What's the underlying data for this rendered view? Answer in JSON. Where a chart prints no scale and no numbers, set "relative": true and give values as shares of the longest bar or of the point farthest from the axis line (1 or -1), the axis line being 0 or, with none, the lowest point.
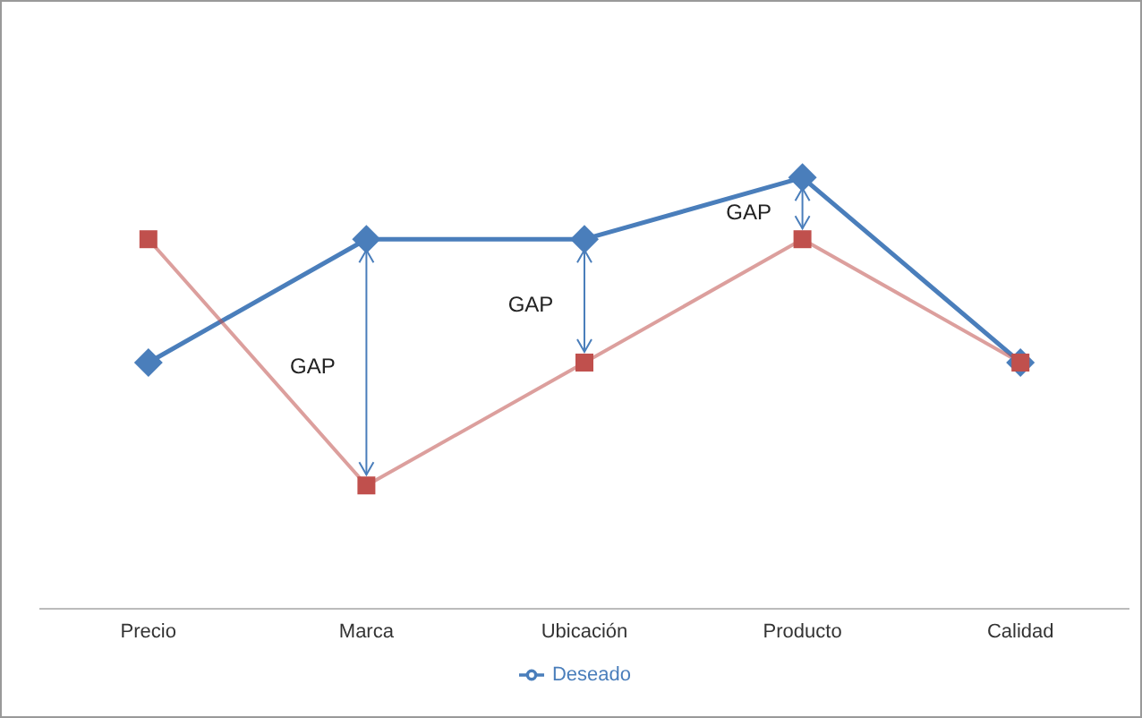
{
  "chart_data": {
    "type": "line",
    "relative": true,
    "categories": [
      "Precio",
      "Marca",
      "Ubicación",
      "Producto",
      "Calidad"
    ],
    "series": [
      {
        "name": "Deseado",
        "color": "#4a7ebb",
        "marker": "diamond",
        "values": [
          0.571,
          0.857,
          0.857,
          1,
          0.571
        ]
      },
      {
        "color": "#c0504d",
        "marker": "square",
        "values": [
          0.857,
          0.286,
          0.571,
          0.857,
          0.571
        ]
      }
    ],
    "annotations": [
      "GAP",
      "GAP",
      "GAP"
    ],
    "legend": "bottom",
    "grid": false,
    "line_style": "solid"
  }
}
